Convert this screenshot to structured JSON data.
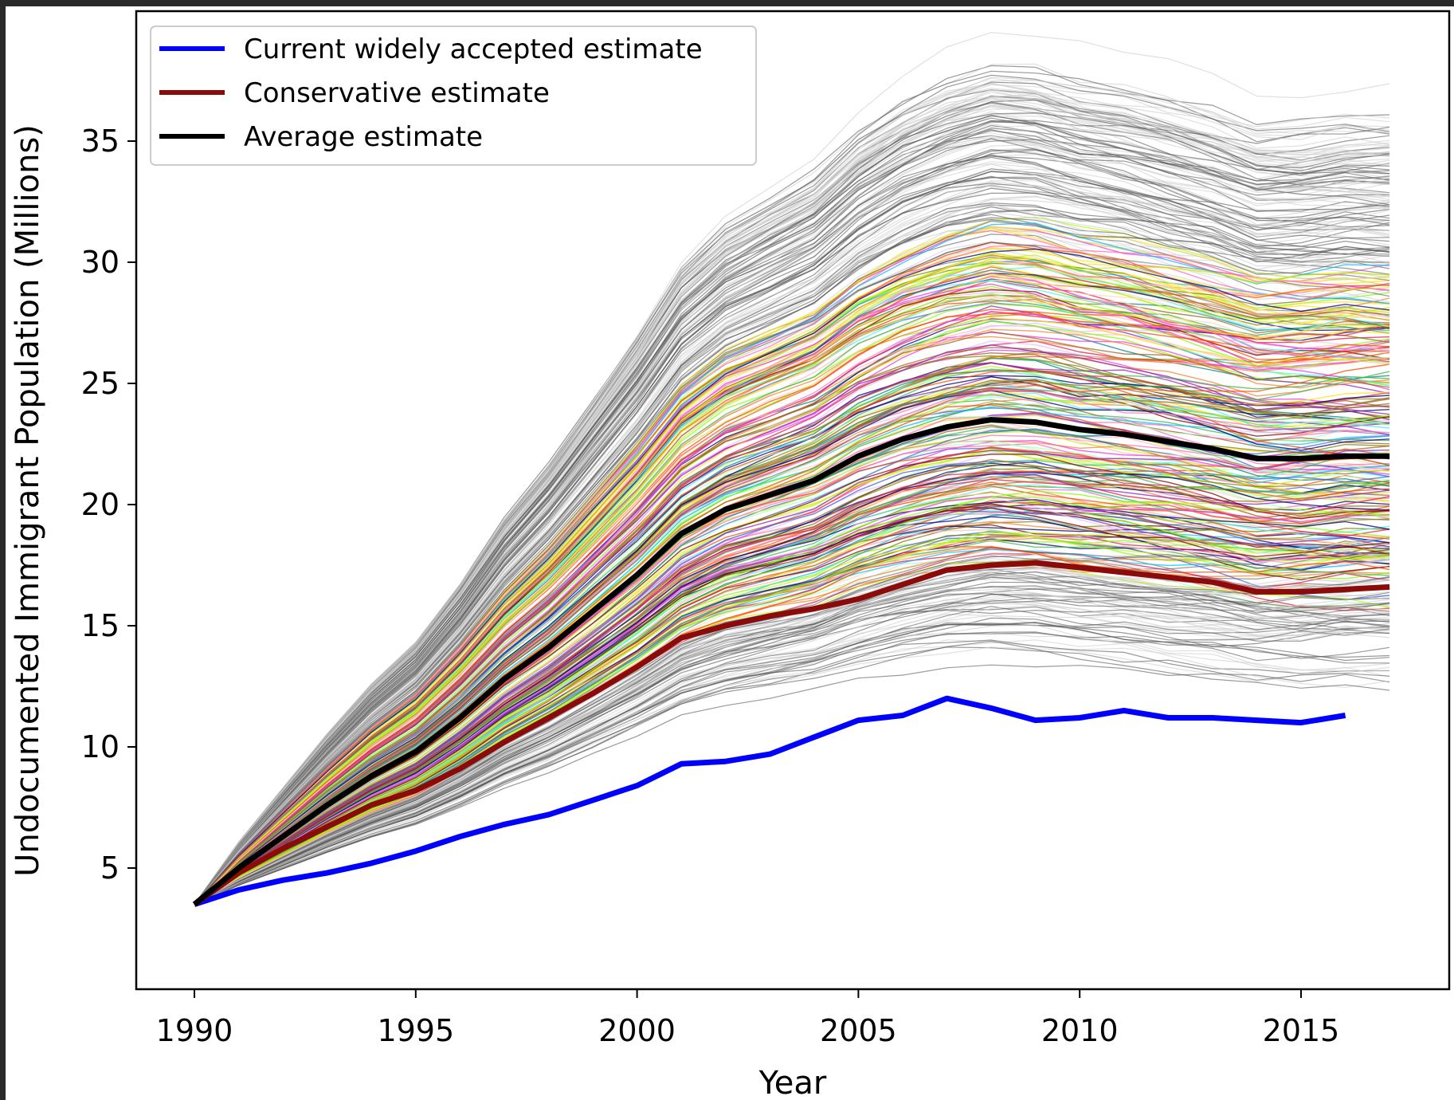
{
  "chart_data": {
    "type": "line",
    "title": "",
    "xlabel": "Year",
    "ylabel": "Undocumented Immigrant Population (Millions)",
    "xlim": [
      1988.7,
      2018.3
    ],
    "ylim": [
      0.5,
      40
    ],
    "xticks": [
      1990,
      1995,
      2000,
      2005,
      2010,
      2015
    ],
    "yticks": [
      5,
      10,
      15,
      20,
      25,
      30,
      35
    ],
    "grid": false,
    "legend_position": "top-left",
    "series": [
      {
        "name": "Current widely accepted estimate",
        "color": "#0000ff",
        "x": [
          1990,
          1991,
          1992,
          1993,
          1994,
          1995,
          1996,
          1997,
          1998,
          1999,
          2000,
          2001,
          2002,
          2003,
          2004,
          2005,
          2006,
          2007,
          2008,
          2009,
          2010,
          2011,
          2012,
          2013,
          2014,
          2015,
          2016
        ],
        "values": [
          3.5,
          4.1,
          4.5,
          4.8,
          5.2,
          5.7,
          6.3,
          6.8,
          7.2,
          7.8,
          8.4,
          9.3,
          9.4,
          9.7,
          10.4,
          11.1,
          11.3,
          12.0,
          11.6,
          11.1,
          11.2,
          11.5,
          11.2,
          11.2,
          11.1,
          11.0,
          11.3
        ]
      },
      {
        "name": "Conservative estimate",
        "color": "#8b0a0a",
        "x": [
          1990,
          1991,
          1992,
          1993,
          1994,
          1995,
          1996,
          1997,
          1998,
          1999,
          2000,
          2001,
          2002,
          2003,
          2004,
          2005,
          2006,
          2007,
          2008,
          2009,
          2010,
          2011,
          2012,
          2013,
          2014,
          2015,
          2016,
          2017
        ],
        "values": [
          3.5,
          4.8,
          5.8,
          6.7,
          7.6,
          8.2,
          9.1,
          10.2,
          11.2,
          12.2,
          13.3,
          14.5,
          15.0,
          15.4,
          15.7,
          16.1,
          16.7,
          17.3,
          17.5,
          17.6,
          17.4,
          17.2,
          17.0,
          16.8,
          16.4,
          16.4,
          16.5,
          16.6
        ]
      },
      {
        "name": "Average estimate",
        "color": "#000000",
        "x": [
          1990,
          1991,
          1992,
          1993,
          1994,
          1995,
          1996,
          1997,
          1998,
          1999,
          2000,
          2001,
          2002,
          2003,
          2004,
          2005,
          2006,
          2007,
          2008,
          2009,
          2010,
          2011,
          2012,
          2013,
          2014,
          2015,
          2016,
          2017
        ],
        "values": [
          3.5,
          5.0,
          6.3,
          7.6,
          8.8,
          9.8,
          11.2,
          12.8,
          14.1,
          15.6,
          17.1,
          18.8,
          19.8,
          20.4,
          21.0,
          22.0,
          22.7,
          23.2,
          23.5,
          23.4,
          23.1,
          22.9,
          22.6,
          22.3,
          21.9,
          21.9,
          22.0,
          22.0
        ]
      }
    ],
    "ensemble": {
      "description_range_2008": [
        14,
        38
      ]
    }
  }
}
